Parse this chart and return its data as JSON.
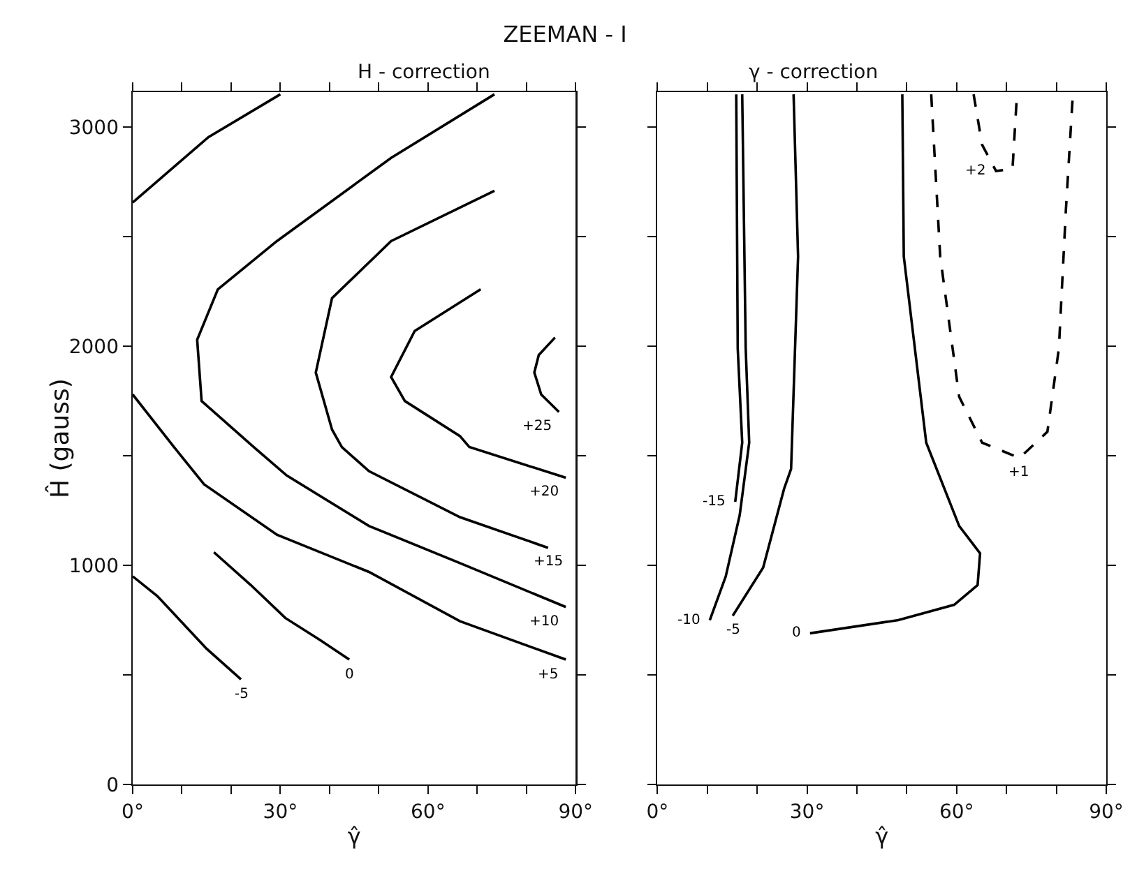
{
  "chart_data": [
    {
      "type": "line",
      "title": "ZEEMAN - I",
      "subtitle": "H - correction",
      "xlabel": "γ̂",
      "ylabel": "Ĥ (gauss)",
      "marker": "none",
      "line_style": "solid",
      "xlim": [
        0,
        90
      ],
      "ylim": [
        0,
        3160
      ],
      "xticks": [
        {
          "value": 0,
          "label": "0°"
        },
        {
          "value": 10,
          "label": null
        },
        {
          "value": 20,
          "label": null
        },
        {
          "value": 30,
          "label": "30°"
        },
        {
          "value": 40,
          "label": null
        },
        {
          "value": 50,
          "label": null
        },
        {
          "value": 60,
          "label": "60°"
        },
        {
          "value": 70,
          "label": null
        },
        {
          "value": 80,
          "label": null
        },
        {
          "value": 90,
          "label": "90°"
        }
      ],
      "yticks": [
        0,
        {
          "value": 500,
          "label": null
        },
        1000,
        {
          "value": 1500,
          "label": null
        },
        2000,
        {
          "value": 2500,
          "label": null
        },
        3000
      ],
      "series": [
        {
          "color": "#000000",
          "x": [
            0,
            15.4,
            30
          ],
          "values": [
            2656,
            2955,
            3150
          ]
        },
        {
          "name": "-5",
          "color": "#000000",
          "x": [
            0,
            5,
            10,
            15,
            22
          ],
          "values": [
            950,
            860,
            740,
            620,
            480
          ]
        },
        {
          "name": "0",
          "color": "#000000",
          "x": [
            16.5,
            24,
            31,
            38,
            44
          ],
          "values": [
            1060,
            910,
            760,
            660,
            570
          ]
        },
        {
          "name": "+5",
          "color": "#000000",
          "x": [
            0,
            8.4,
            14.5,
            29.3,
            48,
            66.5,
            88
          ],
          "values": [
            1780,
            1540,
            1370,
            1140,
            970,
            745,
            570
          ]
        },
        {
          "name": "+10",
          "color": "#000000",
          "x": [
            73.5,
            52.5,
            29.3,
            17.3,
            13.1,
            14,
            24.6,
            31.3,
            48,
            66.5,
            88
          ],
          "values": [
            3150,
            2860,
            2480,
            2260,
            2030,
            1750,
            1540,
            1410,
            1180,
            1010,
            810
          ]
        },
        {
          "name": "+15",
          "color": "#000000",
          "x": [
            73.5,
            52.5,
            40.5,
            37.2,
            40.5,
            42.5,
            48,
            66.5,
            84.4
          ],
          "values": [
            2710,
            2480,
            2220,
            1880,
            1620,
            1540,
            1430,
            1220,
            1080
          ]
        },
        {
          "name": "+20",
          "color": "#000000",
          "x": [
            70.7,
            57.3,
            52.5,
            55.3,
            66.5,
            68.4,
            88
          ],
          "values": [
            2260,
            2070,
            1860,
            1750,
            1590,
            1540,
            1400
          ]
        },
        {
          "name": "+25",
          "color": "#000000",
          "x": [
            85.8,
            82.5,
            81.6,
            83,
            86.6
          ],
          "values": [
            2040,
            1960,
            1880,
            1780,
            1700
          ]
        }
      ]
    },
    {
      "type": "line",
      "subtitle": "γ - correction",
      "xlabel": "γ̂",
      "marker": "none",
      "tick_labels": "x",
      "xlim": [
        0,
        90
      ],
      "ylim": [
        0,
        3160
      ],
      "xticks": [
        {
          "value": 0,
          "label": "0°"
        },
        {
          "value": 10,
          "label": null
        },
        {
          "value": 20,
          "label": null
        },
        {
          "value": 30,
          "label": "30°"
        },
        {
          "value": 40,
          "label": null
        },
        {
          "value": 50,
          "label": null
        },
        {
          "value": 60,
          "label": "60°"
        },
        {
          "value": 70,
          "label": null
        },
        {
          "value": 80,
          "label": null
        },
        {
          "value": 90,
          "label": "90°"
        }
      ],
      "yticks": [
        0,
        {
          "value": 500,
          "label": null
        },
        1000,
        {
          "value": 1500,
          "label": null
        },
        2000,
        {
          "value": 2500,
          "label": null
        },
        3000
      ],
      "series": [
        {
          "name": "-15",
          "color": "#000000",
          "line_style": "solid",
          "x": [
            15.8,
            16.1,
            17,
            15.6
          ],
          "values": [
            3150,
            1990,
            1560,
            1290
          ]
        },
        {
          "name": "-10",
          "color": "#000000",
          "line_style": "solid",
          "x": [
            17,
            17.7,
            18.4,
            16.5,
            13.7,
            10.5
          ],
          "values": [
            3150,
            1990,
            1560,
            1230,
            950,
            750
          ]
        },
        {
          "name": "-5",
          "color": "#000000",
          "line_style": "solid",
          "x": [
            27.3,
            28.2,
            26.8,
            25.4,
            21.2,
            15.1
          ],
          "values": [
            3150,
            2410,
            1440,
            1350,
            990,
            770
          ]
        },
        {
          "name": "0",
          "color": "#000000",
          "line_style": "solid",
          "x": [
            49.1,
            49.4,
            53.9,
            60.5,
            64.7,
            64.2,
            59.5,
            48.3,
            30.6
          ],
          "values": [
            3150,
            2410,
            1560,
            1180,
            1055,
            910,
            820,
            750,
            690
          ]
        },
        {
          "name": "+1",
          "color": "#000000",
          "line_style": "dashed",
          "x": [
            54.9,
            56.7,
            60.5,
            65.1,
            72.6,
            78.2,
            80.5,
            81.9,
            83.3
          ],
          "values": [
            3150,
            2410,
            1770,
            1560,
            1490,
            1610,
            1990,
            2620,
            3150
          ]
        },
        {
          "name": "+2",
          "color": "#000000",
          "line_style": "dashed",
          "x": [
            63.4,
            65.1,
            67.9,
            71.2,
            72.1
          ],
          "values": [
            3150,
            2920,
            2800,
            2810,
            3150
          ]
        }
      ]
    }
  ]
}
